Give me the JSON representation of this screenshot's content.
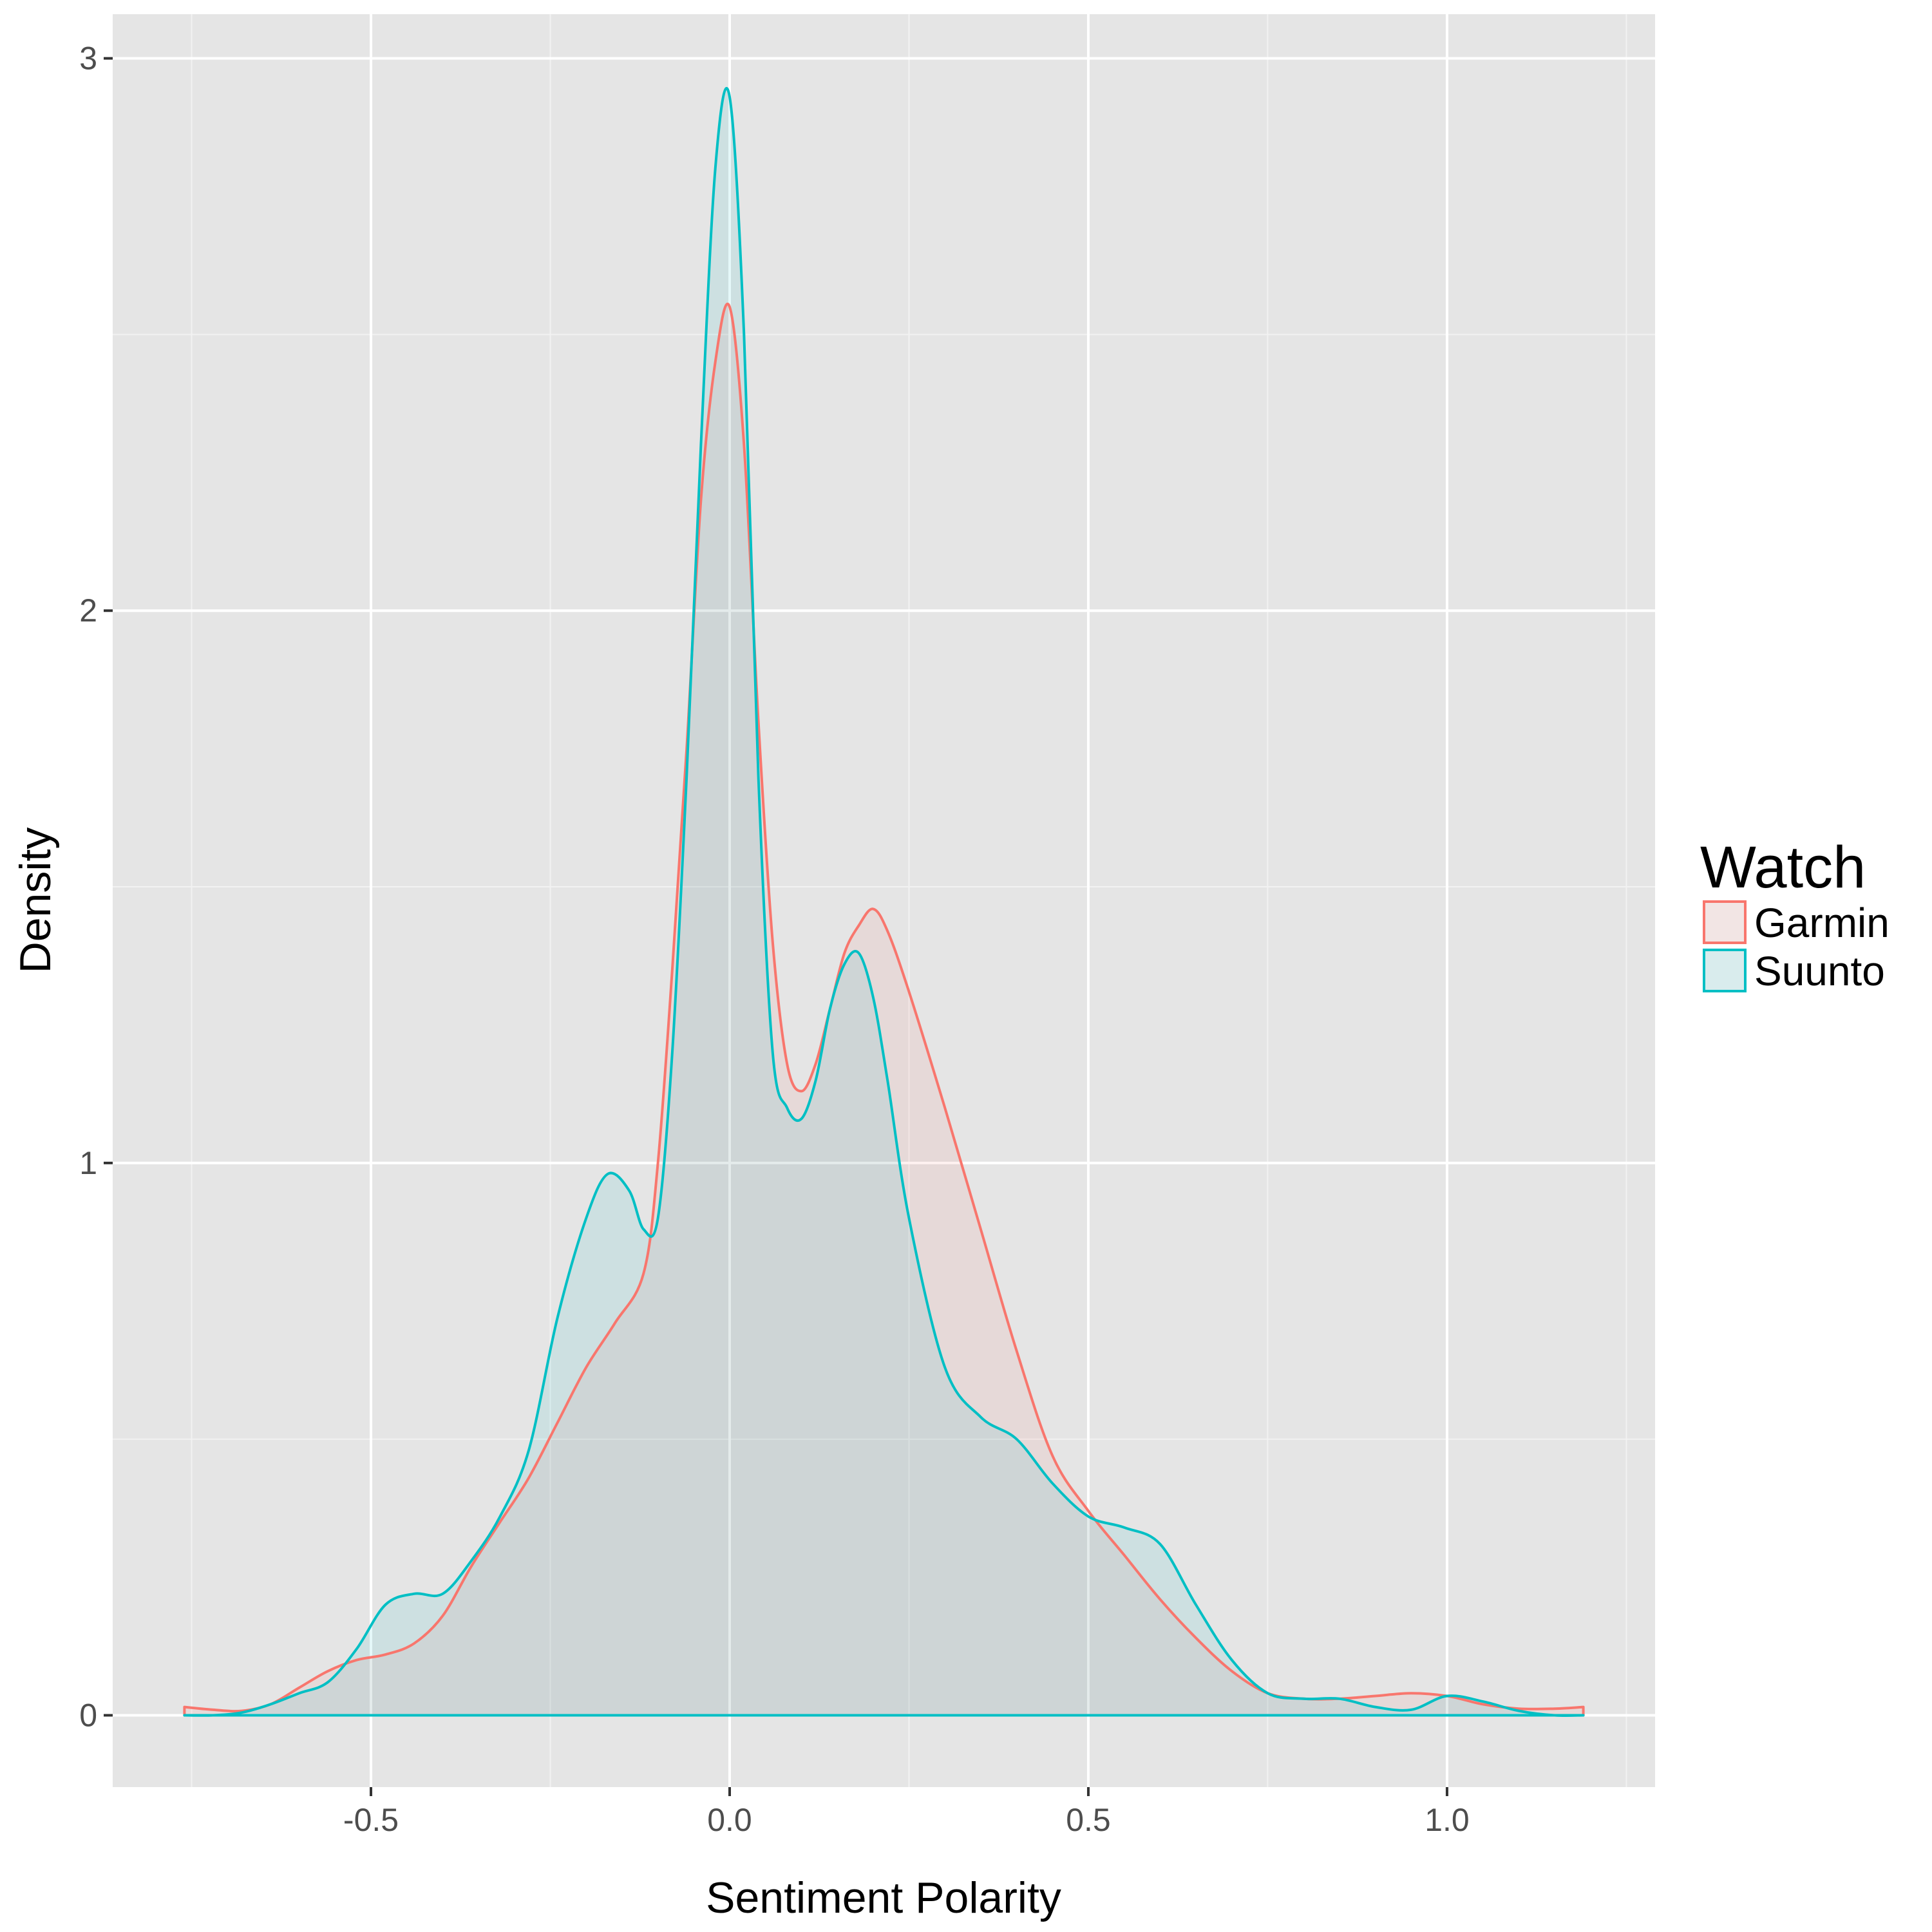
{
  "chart_data": {
    "type": "area",
    "title": "",
    "xlabel": "Sentiment Polarity",
    "ylabel": "Density",
    "xlim": [
      -0.86,
      1.29
    ],
    "ylim": [
      -0.13,
      3.08
    ],
    "x_ticks": [
      -0.5,
      0.0,
      0.5,
      1.0
    ],
    "x_tick_labels": [
      "-0.5",
      "0.0",
      "0.5",
      "1.0"
    ],
    "y_ticks": [
      0,
      1,
      2,
      3
    ],
    "y_tick_labels": [
      "0",
      "1",
      "2",
      "3"
    ],
    "grid": true,
    "legend": {
      "title": "Watch",
      "position": "right",
      "entries": [
        "Garmin",
        "Suunto"
      ]
    },
    "series": [
      {
        "name": "Garmin",
        "line_color": "#F8766D",
        "fill_color": "#F8766D",
        "x": [
          -0.76,
          -0.72,
          -0.68,
          -0.64,
          -0.6,
          -0.56,
          -0.52,
          -0.48,
          -0.44,
          -0.4,
          -0.36,
          -0.32,
          -0.28,
          -0.24,
          -0.2,
          -0.16,
          -0.12,
          -0.1,
          -0.08,
          -0.06,
          -0.04,
          -0.02,
          0.0,
          0.02,
          0.04,
          0.06,
          0.08,
          0.1,
          0.12,
          0.14,
          0.16,
          0.18,
          0.2,
          0.22,
          0.25,
          0.3,
          0.35,
          0.4,
          0.45,
          0.5,
          0.55,
          0.6,
          0.65,
          0.7,
          0.75,
          0.8,
          0.85,
          0.9,
          0.95,
          1.0,
          1.05,
          1.1,
          1.15,
          1.19
        ],
        "y": [
          0.015,
          0.01,
          0.008,
          0.02,
          0.05,
          0.08,
          0.1,
          0.11,
          0.13,
          0.18,
          0.27,
          0.35,
          0.43,
          0.53,
          0.63,
          0.71,
          0.8,
          1.0,
          1.35,
          1.75,
          2.2,
          2.45,
          2.55,
          2.3,
          1.8,
          1.4,
          1.18,
          1.13,
          1.18,
          1.28,
          1.38,
          1.43,
          1.46,
          1.42,
          1.31,
          1.1,
          0.88,
          0.66,
          0.47,
          0.37,
          0.29,
          0.21,
          0.14,
          0.08,
          0.04,
          0.03,
          0.03,
          0.035,
          0.04,
          0.035,
          0.02,
          0.012,
          0.012,
          0.015
        ]
      },
      {
        "name": "Suunto",
        "line_color": "#00BFC4",
        "fill_color": "#00BFC4",
        "x": [
          -0.76,
          -0.72,
          -0.68,
          -0.64,
          -0.6,
          -0.56,
          -0.52,
          -0.48,
          -0.44,
          -0.4,
          -0.36,
          -0.32,
          -0.28,
          -0.24,
          -0.2,
          -0.17,
          -0.14,
          -0.12,
          -0.1,
          -0.08,
          -0.06,
          -0.04,
          -0.02,
          0.0,
          0.02,
          0.04,
          0.06,
          0.08,
          0.1,
          0.12,
          0.14,
          0.16,
          0.18,
          0.2,
          0.22,
          0.25,
          0.3,
          0.35,
          0.4,
          0.45,
          0.5,
          0.55,
          0.6,
          0.65,
          0.7,
          0.75,
          0.8,
          0.85,
          0.9,
          0.95,
          1.0,
          1.05,
          1.1,
          1.15,
          1.19
        ],
        "y": [
          0.0,
          0.0,
          0.005,
          0.02,
          0.04,
          0.06,
          0.12,
          0.2,
          0.22,
          0.22,
          0.28,
          0.36,
          0.48,
          0.72,
          0.9,
          0.98,
          0.95,
          0.88,
          0.9,
          1.2,
          1.7,
          2.3,
          2.8,
          2.93,
          2.5,
          1.7,
          1.2,
          1.1,
          1.08,
          1.15,
          1.28,
          1.36,
          1.38,
          1.3,
          1.15,
          0.9,
          0.63,
          0.54,
          0.5,
          0.42,
          0.36,
          0.34,
          0.31,
          0.2,
          0.1,
          0.04,
          0.03,
          0.03,
          0.015,
          0.01,
          0.035,
          0.025,
          0.008,
          0.0,
          0.0
        ]
      }
    ]
  }
}
